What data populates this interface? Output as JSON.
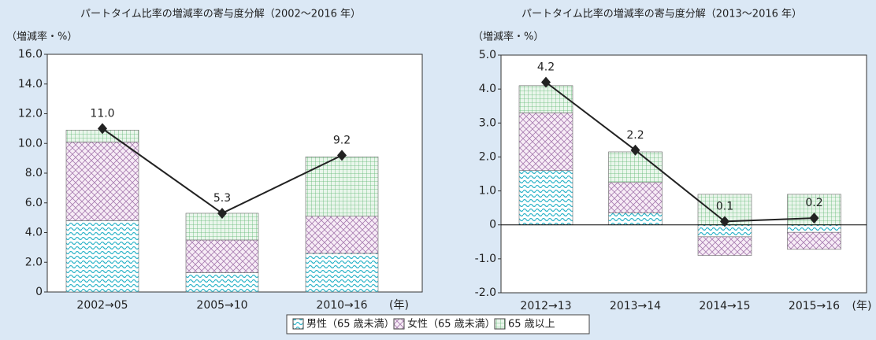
{
  "chart_data": [
    {
      "type": "bar",
      "stacked": true,
      "title": "パートタイム比率の増減率の寄与度分解（2002～2016 年）",
      "y_label": "（増減率・%）",
      "x_unit": "(年)",
      "categories": [
        "2002→05",
        "2005→10",
        "2010→16"
      ],
      "series": [
        {
          "name": "男性（65 歳未満）",
          "color": "#2bb3c8",
          "pattern": "wave",
          "values": [
            4.8,
            1.3,
            2.6
          ]
        },
        {
          "name": "女性（65 歳未満）",
          "color": "#a77bb0",
          "pattern": "cross",
          "values": [
            5.3,
            2.2,
            2.5
          ]
        },
        {
          "name": "65 歳以上",
          "color": "#5fb872",
          "pattern": "grid",
          "values": [
            0.8,
            1.8,
            4.0
          ]
        }
      ],
      "line": {
        "color": "#222222",
        "values": [
          11,
          5.3,
          9.2
        ],
        "value_labels": [
          "11.0",
          "5.3",
          "9.2"
        ]
      },
      "ylim": [
        0,
        16
      ],
      "yticks": [
        0,
        {
          "value": 2,
          "label": "2.0"
        },
        {
          "value": 4,
          "label": "4.0"
        },
        {
          "value": 6,
          "label": "6.0"
        },
        {
          "value": 8,
          "label": "8.0"
        },
        {
          "value": 10,
          "label": "10.0"
        },
        {
          "value": 12,
          "label": "12.0"
        },
        {
          "value": 14,
          "label": "14.0"
        },
        {
          "value": 16,
          "label": "16.0"
        }
      ]
    },
    {
      "type": "bar",
      "stacked": true,
      "title": "パートタイム比率の増減率の寄与度分解（2013～2016 年）",
      "y_label": "（増減率・%）",
      "x_unit": "(年)",
      "categories": [
        "2012→13",
        "2013→14",
        "2014→15",
        "2015→16"
      ],
      "series": [
        {
          "color": "#2bb3c8",
          "pattern": "wave",
          "values": [
            1.6,
            0.35,
            -0.35,
            -0.22
          ]
        },
        {
          "color": "#a77bb0",
          "pattern": "cross",
          "values": [
            1.7,
            0.9,
            -0.55,
            -0.5
          ]
        },
        {
          "color": "#5fb872",
          "pattern": "grid",
          "values": [
            0.8,
            0.9,
            0.9,
            0.9
          ]
        }
      ],
      "line": {
        "color": "#222222",
        "values": [
          4.2,
          2.2,
          0.1,
          0.2
        ],
        "value_labels": [
          "4.2",
          "2.2",
          "0.1",
          "0.2"
        ]
      },
      "ylim": [
        -2,
        5
      ],
      "yticks": [
        {
          "value": -2,
          "label": "-2.0"
        },
        {
          "value": -1,
          "label": "-1.0"
        },
        0,
        {
          "value": 1,
          "label": "1.0"
        },
        {
          "value": 2,
          "label": "2.0"
        },
        {
          "value": 3,
          "label": "3.0"
        },
        {
          "value": 4,
          "label": "4.0"
        },
        {
          "value": 5,
          "label": "5.0"
        }
      ]
    }
  ]
}
